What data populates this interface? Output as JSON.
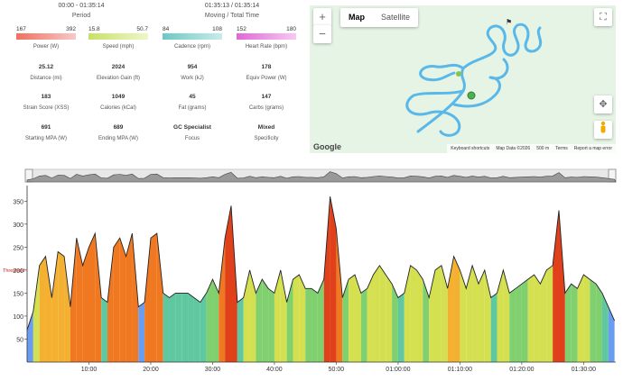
{
  "header": {
    "period_time": "00:00 - 01:35:14",
    "period_label": "Period",
    "moving_time": "01:35:13 / 01:35:14",
    "moving_label": "Moving / Total Time"
  },
  "bars": [
    {
      "min": "167",
      "max": "392",
      "label": "Power (W)",
      "color": "#f08070",
      "color2": "#f8c0c0"
    },
    {
      "min": "15.8",
      "max": "50.7",
      "label": "Speed (mph)",
      "color": "#c8e070",
      "color2": "#eaf5c0"
    },
    {
      "min": "84",
      "max": "108",
      "label": "Cadence (rpm)",
      "color": "#70c8c8",
      "color2": "#c0e8e8"
    },
    {
      "min": "152",
      "max": "180",
      "label": "Heart Rate (bpm)",
      "color": "#e070d8",
      "color2": "#f8c0f0"
    }
  ],
  "metrics": [
    [
      {
        "v": "25.12",
        "l": "Distance (mi)"
      },
      {
        "v": "2024",
        "l": "Elevation Gain (ft)"
      },
      {
        "v": "954",
        "l": "Work (kJ)"
      },
      {
        "v": "178",
        "l": "Equiv Power (W)"
      }
    ],
    [
      {
        "v": "183",
        "l": "Strain Score (XSS)"
      },
      {
        "v": "1049",
        "l": "Calories (kCal)"
      },
      {
        "v": "45",
        "l": "Fat (grams)"
      },
      {
        "v": "147",
        "l": "Carbs (grams)"
      }
    ],
    [
      {
        "v": "691",
        "l": "Starting MPA (W)"
      },
      {
        "v": "689",
        "l": "Ending MPA (W)"
      },
      {
        "v": "GC Specialist",
        "l": "Focus"
      },
      {
        "v": "Mixed",
        "l": "Specificity"
      }
    ]
  ],
  "map": {
    "tab_map": "Map",
    "tab_satellite": "Satellite",
    "zoom_in": "+",
    "zoom_out": "−",
    "google": "Google",
    "footer": [
      "Keyboard shortcuts",
      "Map Data ©2026",
      "500 m",
      "Terms",
      "Report a map error"
    ]
  },
  "chart_data": {
    "type": "area",
    "ylim": [
      0,
      380
    ],
    "yticks": [
      50,
      100,
      150,
      200,
      250,
      300,
      350
    ],
    "xticks": [
      "10:00",
      "20:00",
      "30:00",
      "40:00",
      "50:00",
      "01:00:00",
      "01:10:00",
      "01:20:00",
      "01:30:00"
    ],
    "xtick_minutes": [
      10,
      20,
      30,
      40,
      50,
      60,
      70,
      80,
      90
    ],
    "xlim_minutes": [
      0,
      95.2
    ],
    "threshold_label": "Threshold",
    "threshold": 200,
    "series": [
      {
        "x": [
          0,
          1,
          2,
          3,
          4,
          5,
          6,
          7,
          8,
          9,
          10,
          11,
          12,
          13,
          14,
          15,
          16,
          17,
          18,
          19,
          20,
          21,
          22,
          23,
          24,
          25,
          26,
          27,
          28,
          29,
          30,
          31,
          32,
          33,
          34,
          35,
          36,
          37,
          38,
          39,
          40,
          41,
          42,
          43,
          44,
          45,
          46,
          47,
          48,
          49,
          50,
          51,
          52,
          53,
          54,
          55,
          56,
          57,
          58,
          59,
          60,
          61,
          62,
          63,
          64,
          65,
          66,
          67,
          68,
          69,
          70,
          71,
          72,
          73,
          74,
          75,
          76,
          77,
          78,
          79,
          80,
          81,
          82,
          83,
          84,
          85,
          86,
          87,
          88,
          89,
          90,
          91,
          92,
          93,
          94,
          95
        ],
        "values": [
          70,
          110,
          210,
          230,
          140,
          240,
          230,
          120,
          270,
          210,
          250,
          280,
          140,
          130,
          250,
          270,
          230,
          280,
          120,
          130,
          270,
          280,
          150,
          140,
          150,
          150,
          150,
          140,
          130,
          150,
          180,
          150,
          270,
          340,
          130,
          140,
          200,
          150,
          180,
          160,
          150,
          200,
          130,
          180,
          190,
          160,
          160,
          150,
          180,
          360,
          290,
          140,
          180,
          190,
          150,
          160,
          190,
          210,
          190,
          170,
          140,
          150,
          210,
          200,
          180,
          140,
          200,
          210,
          160,
          230,
          200,
          160,
          210,
          170,
          200,
          140,
          150,
          200,
          150,
          160,
          170,
          180,
          190,
          170,
          200,
          210,
          330,
          150,
          170,
          160,
          190,
          180,
          170,
          150,
          120,
          90
        ]
      }
    ]
  }
}
